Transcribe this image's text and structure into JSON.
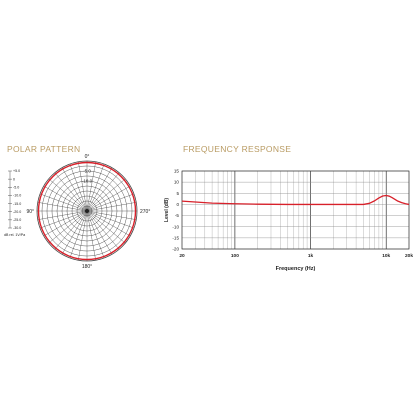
{
  "polar_pattern": {
    "title": "POLAR PATTERN"
  },
  "frequency_response": {
    "title": "FREQUENCY RESPONSE"
  },
  "colors": {
    "title_gold": "#b99b63",
    "curve_red": "#d8202a",
    "grid": "#444444"
  },
  "chart_data": [
    {
      "type": "polar",
      "title": "POLAR PATTERN",
      "angle_labels": [
        "0°",
        "90°",
        "180°",
        "270°"
      ],
      "ring_labels": [
        "-5.0",
        "-10.0"
      ],
      "ring_values_db": [
        0,
        -2.5,
        -5,
        -7.5,
        -10,
        -12.5,
        -15,
        -17.5,
        -20,
        -22.5,
        -25
      ],
      "scale_labels": [
        "+5.0",
        "0",
        "-5.0",
        "-10.0",
        "-15.0",
        "-20.0",
        "-25.0",
        "-30.0"
      ],
      "scale_unit": "dB rel. 1V/Pa",
      "series": [
        {
          "name": "",
          "pattern": "omnidirectional",
          "level_db": 0
        }
      ]
    },
    {
      "type": "line",
      "title": "FREQUENCY RESPONSE",
      "xlabel": "Frequency (Hz)",
      "ylabel": "Level (dB)",
      "x_scale": "log",
      "xlim": [
        20,
        20000
      ],
      "ylim": [
        -20,
        15
      ],
      "x_tick_labels": [
        {
          "value": 20,
          "label": "20"
        },
        {
          "value": 100,
          "label": "100"
        },
        {
          "value": 1000,
          "label": "1k"
        },
        {
          "value": 10000,
          "label": "10k"
        },
        {
          "value": 20000,
          "label": "20k"
        }
      ],
      "y_ticks": [
        15,
        10,
        5,
        0,
        -5,
        -10,
        -15,
        -20
      ],
      "grid": true,
      "series": [
        {
          "name": "",
          "x": [
            20,
            30,
            50,
            100,
            200,
            500,
            1000,
            2000,
            4000,
            5000,
            6000,
            7000,
            8000,
            9000,
            10000,
            11000,
            12000,
            14000,
            16000,
            18000,
            20000
          ],
          "y": [
            1.5,
            1.1,
            0.6,
            0.3,
            0.1,
            0.0,
            0.0,
            0.0,
            0.0,
            0.0,
            0.5,
            1.6,
            2.9,
            3.8,
            4.0,
            3.7,
            3.0,
            1.6,
            0.8,
            0.3,
            0.0
          ]
        }
      ]
    }
  ]
}
